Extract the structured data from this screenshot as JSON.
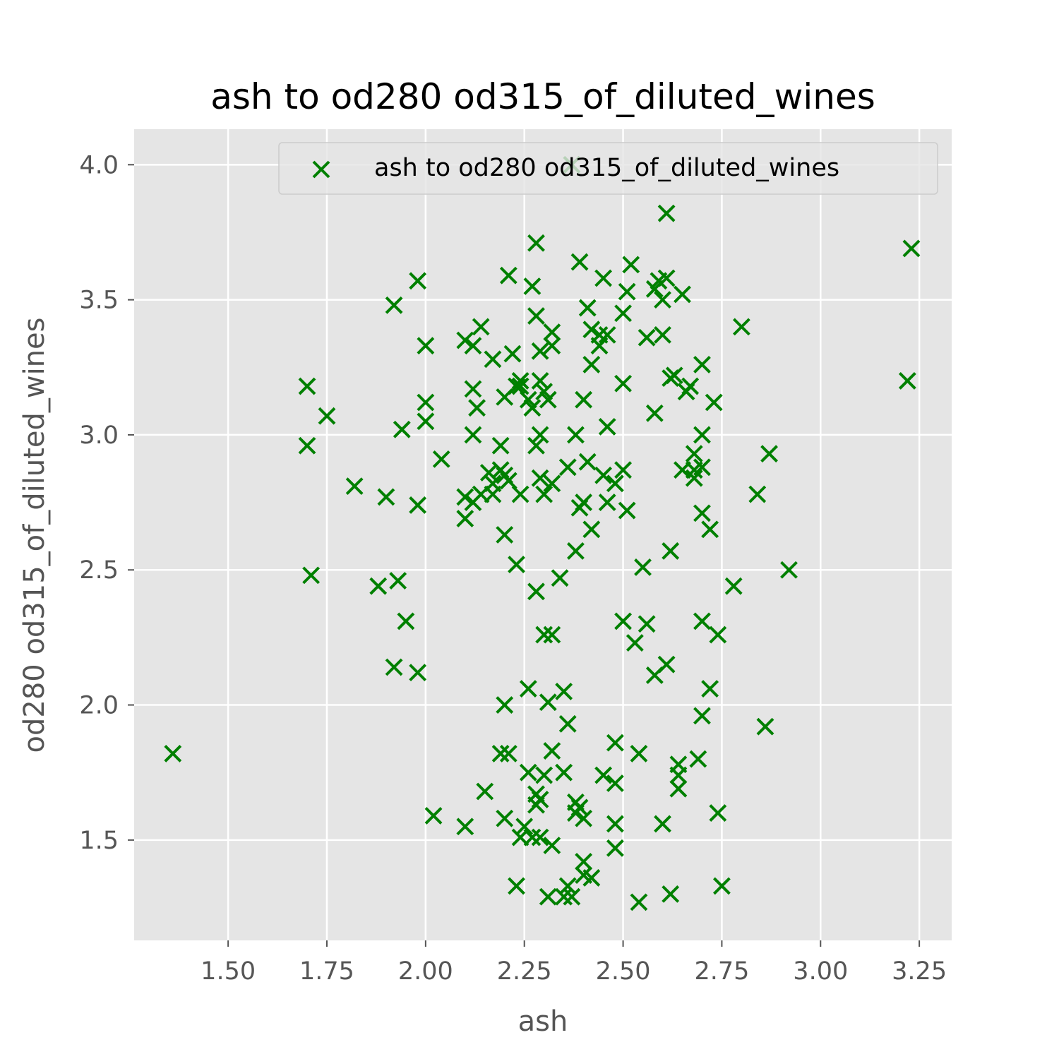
{
  "chart_data": {
    "type": "scatter",
    "title": "ash to od280 od315_of_diluted_wines",
    "xlabel": "ash",
    "ylabel": "od280 od315_of_diluted_wines",
    "xlim": [
      1.262,
      3.332
    ],
    "ylim": [
      1.1285,
      4.1315
    ],
    "xticks": [
      1.5,
      1.75,
      2.0,
      2.25,
      2.5,
      2.75,
      3.0,
      3.25
    ],
    "xtick_labels": [
      "1.50",
      "1.75",
      "2.00",
      "2.25",
      "2.50",
      "2.75",
      "3.00",
      "3.25"
    ],
    "yticks": [
      1.5,
      2.0,
      2.5,
      3.0,
      3.5,
      4.0
    ],
    "ytick_labels": [
      "1.5",
      "2.0",
      "2.5",
      "3.0",
      "3.5",
      "4.0"
    ],
    "grid": true,
    "legend_position": "upper-right",
    "marker": "x",
    "colors": {
      "marker": "#008000",
      "plot_bg": "#e5e5e5",
      "grid": "#ffffff",
      "tick": "#555555"
    },
    "series": [
      {
        "name": "ash to od280 od315_of_diluted_wines",
        "points": [
          [
            1.36,
            1.82
          ],
          [
            1.7,
            3.18
          ],
          [
            1.7,
            2.96
          ],
          [
            1.71,
            2.48
          ],
          [
            1.75,
            3.07
          ],
          [
            1.82,
            2.81
          ],
          [
            1.88,
            2.44
          ],
          [
            1.9,
            2.77
          ],
          [
            1.92,
            3.48
          ],
          [
            1.92,
            2.14
          ],
          [
            1.93,
            2.46
          ],
          [
            1.94,
            3.02
          ],
          [
            1.95,
            2.31
          ],
          [
            1.98,
            3.57
          ],
          [
            1.98,
            2.74
          ],
          [
            1.98,
            2.12
          ],
          [
            2.0,
            3.33
          ],
          [
            2.0,
            3.12
          ],
          [
            2.0,
            3.05
          ],
          [
            2.02,
            1.59
          ],
          [
            2.04,
            2.91
          ],
          [
            2.1,
            3.35
          ],
          [
            2.1,
            2.77
          ],
          [
            2.1,
            2.69
          ],
          [
            2.1,
            1.55
          ],
          [
            2.12,
            3.33
          ],
          [
            2.12,
            3.17
          ],
          [
            2.12,
            3.0
          ],
          [
            2.13,
            3.1
          ],
          [
            2.12,
            2.75
          ],
          [
            2.14,
            3.4
          ],
          [
            2.14,
            2.78
          ],
          [
            2.15,
            1.68
          ],
          [
            2.16,
            2.86
          ],
          [
            2.17,
            2.82
          ],
          [
            2.17,
            2.78
          ],
          [
            2.17,
            3.28
          ],
          [
            2.19,
            2.87
          ],
          [
            2.19,
            2.96
          ],
          [
            2.19,
            1.82
          ],
          [
            2.2,
            3.14
          ],
          [
            2.2,
            2.85
          ],
          [
            2.2,
            2.63
          ],
          [
            2.2,
            2.0
          ],
          [
            2.2,
            1.58
          ],
          [
            2.21,
            3.59
          ],
          [
            2.21,
            2.83
          ],
          [
            2.21,
            1.82
          ],
          [
            2.22,
            3.3
          ],
          [
            2.23,
            3.18
          ],
          [
            2.23,
            2.52
          ],
          [
            2.23,
            1.33
          ],
          [
            2.24,
            3.18
          ],
          [
            2.24,
            3.2
          ],
          [
            2.24,
            2.78
          ],
          [
            2.24,
            1.51
          ],
          [
            2.25,
            1.55
          ],
          [
            2.26,
            3.13
          ],
          [
            2.26,
            2.06
          ],
          [
            2.26,
            1.75
          ],
          [
            2.27,
            3.55
          ],
          [
            2.27,
            3.1
          ],
          [
            2.27,
            1.51
          ],
          [
            2.28,
            3.71
          ],
          [
            2.28,
            3.44
          ],
          [
            2.28,
            2.96
          ],
          [
            2.28,
            2.42
          ],
          [
            2.28,
            1.67
          ],
          [
            2.28,
            1.63
          ],
          [
            2.29,
            3.31
          ],
          [
            2.29,
            3.2
          ],
          [
            2.29,
            3.0
          ],
          [
            2.29,
            2.84
          ],
          [
            2.29,
            1.65
          ],
          [
            2.29,
            1.51
          ],
          [
            2.3,
            3.16
          ],
          [
            2.3,
            2.78
          ],
          [
            2.3,
            2.26
          ],
          [
            2.3,
            1.74
          ],
          [
            2.31,
            3.13
          ],
          [
            2.31,
            1.29
          ],
          [
            2.32,
            3.38
          ],
          [
            2.32,
            3.33
          ],
          [
            2.32,
            2.82
          ],
          [
            2.31,
            2.01
          ],
          [
            2.32,
            2.26
          ],
          [
            2.32,
            1.83
          ],
          [
            2.32,
            1.48
          ],
          [
            2.34,
            2.47
          ],
          [
            2.35,
            2.05
          ],
          [
            2.35,
            1.75
          ],
          [
            2.35,
            1.29
          ],
          [
            2.36,
            2.88
          ],
          [
            2.36,
            1.93
          ],
          [
            2.36,
            1.33
          ],
          [
            2.37,
            4.0
          ],
          [
            2.37,
            1.29
          ],
          [
            2.38,
            3.0
          ],
          [
            2.38,
            2.57
          ],
          [
            2.38,
            1.64
          ],
          [
            2.38,
            1.6
          ],
          [
            2.39,
            3.64
          ],
          [
            2.39,
            2.73
          ],
          [
            2.39,
            1.62
          ],
          [
            2.4,
            3.13
          ],
          [
            2.4,
            2.75
          ],
          [
            2.4,
            1.58
          ],
          [
            2.4,
            1.42
          ],
          [
            2.4,
            1.37
          ],
          [
            2.41,
            3.47
          ],
          [
            2.41,
            2.9
          ],
          [
            2.42,
            3.39
          ],
          [
            2.42,
            3.26
          ],
          [
            2.42,
            2.65
          ],
          [
            2.42,
            1.36
          ],
          [
            2.44,
            3.37
          ],
          [
            2.44,
            3.33
          ],
          [
            2.45,
            3.58
          ],
          [
            2.45,
            2.85
          ],
          [
            2.45,
            1.74
          ],
          [
            2.46,
            3.37
          ],
          [
            2.46,
            3.03
          ],
          [
            2.46,
            2.75
          ],
          [
            2.48,
            2.82
          ],
          [
            2.48,
            1.86
          ],
          [
            2.48,
            1.71
          ],
          [
            2.48,
            1.56
          ],
          [
            2.48,
            1.47
          ],
          [
            2.5,
            3.45
          ],
          [
            2.5,
            3.19
          ],
          [
            2.5,
            2.87
          ],
          [
            2.5,
            2.31
          ],
          [
            2.51,
            3.53
          ],
          [
            2.51,
            2.72
          ],
          [
            2.52,
            3.63
          ],
          [
            2.53,
            2.23
          ],
          [
            2.54,
            1.82
          ],
          [
            2.54,
            1.27
          ],
          [
            2.55,
            2.51
          ],
          [
            2.56,
            3.36
          ],
          [
            2.56,
            2.3
          ],
          [
            2.58,
            3.54
          ],
          [
            2.58,
            3.08
          ],
          [
            2.58,
            2.11
          ],
          [
            2.59,
            3.57
          ],
          [
            2.6,
            3.37
          ],
          [
            2.6,
            3.5
          ],
          [
            2.6,
            1.56
          ],
          [
            2.61,
            3.82
          ],
          [
            2.61,
            3.58
          ],
          [
            2.61,
            2.15
          ],
          [
            2.62,
            3.21
          ],
          [
            2.62,
            2.57
          ],
          [
            2.62,
            1.3
          ],
          [
            2.63,
            3.22
          ],
          [
            2.64,
            1.78
          ],
          [
            2.64,
            1.74
          ],
          [
            2.64,
            1.69
          ],
          [
            2.65,
            3.52
          ],
          [
            2.65,
            2.87
          ],
          [
            2.66,
            3.16
          ],
          [
            2.67,
            3.18
          ],
          [
            2.68,
            2.93
          ],
          [
            2.68,
            2.87
          ],
          [
            2.68,
            2.84
          ],
          [
            2.69,
            1.8
          ],
          [
            2.7,
            3.26
          ],
          [
            2.7,
            3.0
          ],
          [
            2.7,
            2.88
          ],
          [
            2.7,
            2.71
          ],
          [
            2.7,
            2.31
          ],
          [
            2.7,
            1.96
          ],
          [
            2.72,
            2.65
          ],
          [
            2.72,
            2.06
          ],
          [
            2.73,
            3.12
          ],
          [
            2.74,
            2.26
          ],
          [
            2.74,
            1.6
          ],
          [
            2.75,
            1.33
          ],
          [
            2.78,
            2.44
          ],
          [
            2.8,
            3.4
          ],
          [
            2.84,
            2.78
          ],
          [
            2.86,
            1.92
          ],
          [
            2.87,
            2.93
          ],
          [
            2.92,
            2.5
          ],
          [
            3.22,
            3.2
          ],
          [
            3.23,
            3.69
          ]
        ]
      }
    ]
  }
}
